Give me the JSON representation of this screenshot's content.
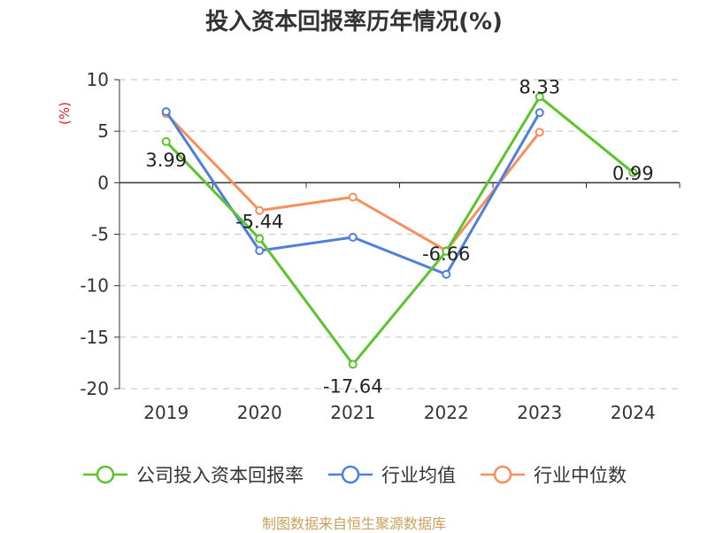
{
  "title": "投入资本回报率历年情况(%)",
  "chart_data": {
    "type": "line",
    "categories": [
      "2019",
      "2020",
      "2021",
      "2022",
      "2023",
      "2024"
    ],
    "ylabel": "(%)",
    "ylim": [
      -20,
      10
    ],
    "yticks": [
      10,
      5,
      0,
      -5,
      -10,
      -15,
      -20
    ],
    "grid": true,
    "legend_position": "bottom",
    "series": [
      {
        "name": "公司投入资本回报率",
        "color": "#5bc42b",
        "values": [
          3.99,
          -5.44,
          -17.64,
          -6.66,
          8.33,
          0.99
        ],
        "labels": [
          "3.99",
          "-5.44",
          "-17.64",
          "-6.66",
          "8.33",
          "0.99"
        ]
      },
      {
        "name": "行业均值",
        "color": "#4e7fde",
        "values": [
          6.9,
          -6.6,
          -5.3,
          -8.9,
          6.8,
          null
        ]
      },
      {
        "name": "行业中位数",
        "color": "#f68f5b",
        "values": [
          6.7,
          -2.7,
          -1.4,
          -6.6,
          4.9,
          null
        ]
      }
    ]
  },
  "source": "制图数据来自恒生聚源数据库"
}
